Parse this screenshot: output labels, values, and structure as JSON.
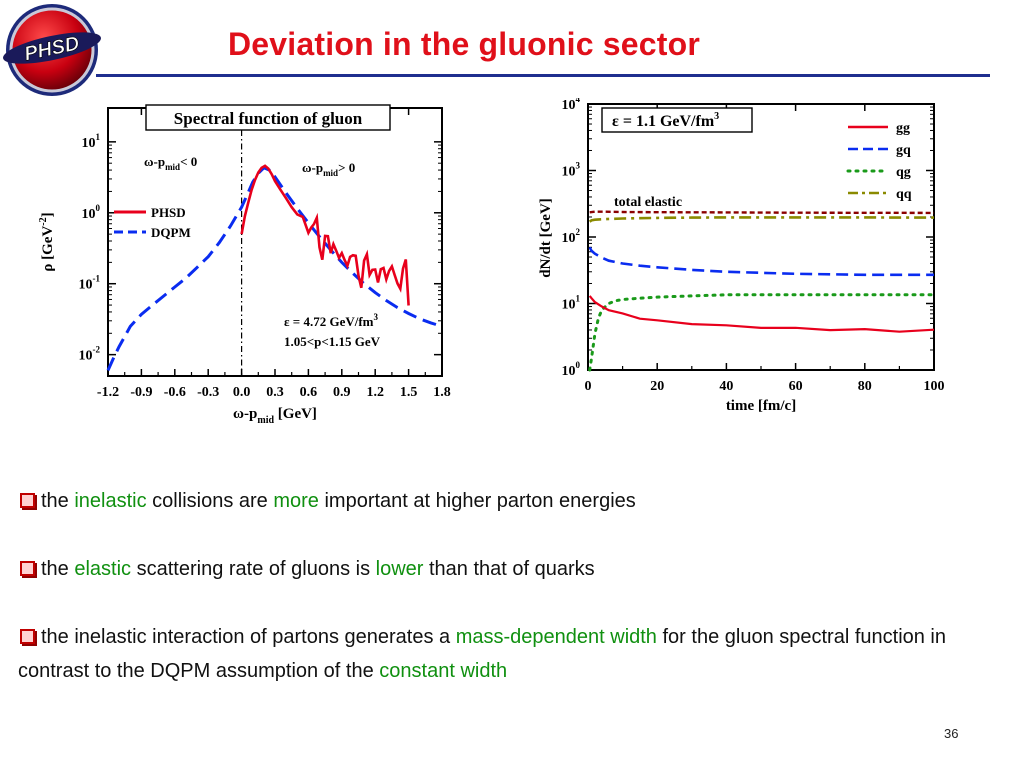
{
  "logo": {
    "text": "PHSD"
  },
  "slide": {
    "title": "Deviation in the gluonic sector",
    "page_number": "36"
  },
  "bullets": [
    {
      "parts": [
        {
          "t": "the ",
          "g": false
        },
        {
          "t": "inelastic",
          "g": true
        },
        {
          "t": " collisions are ",
          "g": false
        },
        {
          "t": "more",
          "g": true
        },
        {
          "t": " important at higher parton energies",
          "g": false
        }
      ]
    },
    {
      "parts": [
        {
          "t": "the ",
          "g": false
        },
        {
          "t": "elastic",
          "g": true
        },
        {
          "t": " scattering rate of gluons is ",
          "g": false
        },
        {
          "t": "lower",
          "g": true
        },
        {
          "t": " than that of quarks",
          "g": false
        }
      ]
    },
    {
      "parts": [
        {
          "t": "the inelastic interaction of partons generates a ",
          "g": false
        },
        {
          "t": "mass-dependent width",
          "g": true
        },
        {
          "t": " for the gluon spectral function in contrast to the DQPM assumption of the ",
          "g": false
        },
        {
          "t": "constant  width",
          "g": true
        }
      ]
    }
  ],
  "colors": {
    "title": "#e0101a",
    "rule": "#1f2e8f",
    "green_text": "#109010",
    "phsd": "#e8001c",
    "dqpm": "#0a2cf0",
    "gq": "#0a2cf0",
    "qg": "#1a9a1a",
    "qq": "#8a8a00",
    "total": "#8b0000"
  },
  "chart_data": [
    {
      "type": "line",
      "title": "Spectral function of gluon",
      "xlabel": "ω-p_mid [GeV]",
      "ylabel": "ρ [GeV^-2]",
      "xlim": [
        -1.2,
        1.8
      ],
      "ylim": [
        0.005,
        30
      ],
      "y_scale": "log",
      "x_ticks": [
        "-1.2",
        "-0.9",
        "-0.6",
        "-0.3",
        "0.0",
        "0.3",
        "0.6",
        "0.9",
        "1.2",
        "1.5",
        "1.8"
      ],
      "y_ticks": [
        {
          "mant": "10",
          "exp": "-2",
          "v": 0.01
        },
        {
          "mant": "10",
          "exp": "-1",
          "v": 0.1
        },
        {
          "mant": "10",
          "exp": "0",
          "v": 1
        },
        {
          "mant": "10",
          "exp": "1",
          "v": 10
        }
      ],
      "legend_placement": "upper-left",
      "region_left_label": "ω-p",
      "region_left_sub": "mid",
      "region_left_tail": "< 0",
      "region_right_label": "ω-p",
      "region_right_sub": "mid",
      "region_right_tail": "> 0",
      "annotation_line1": "ε = 4.72 GeV/fm",
      "annotation_line1_sup": "3",
      "annotation_line2": "1.05<p<1.15 GeV",
      "series": [
        {
          "name": "PHSD",
          "x": [
            0.0,
            0.03,
            0.06,
            0.09,
            0.12,
            0.15,
            0.18,
            0.21,
            0.24,
            0.27,
            0.3,
            0.35,
            0.4,
            0.45,
            0.5,
            0.55,
            0.6,
            0.65,
            0.7,
            0.75,
            0.8,
            0.85,
            0.9,
            0.95,
            1.0,
            1.05,
            1.1,
            1.15,
            1.2,
            1.25,
            1.3,
            1.35,
            1.4,
            1.45,
            1.5
          ],
          "y": [
            0.5,
            0.9,
            1.4,
            2.1,
            2.9,
            3.7,
            4.3,
            4.6,
            4.2,
            3.5,
            2.8,
            2.1,
            1.6,
            1.2,
            0.95,
            0.8,
            0.65,
            0.55,
            0.45,
            0.38,
            0.32,
            0.28,
            0.25,
            0.22,
            0.2,
            0.18,
            0.17,
            0.16,
            0.15,
            0.15,
            0.14,
            0.14,
            0.14,
            0.13,
            0.06
          ]
        },
        {
          "name": "DQPM",
          "x": [
            -1.2,
            -1.15,
            -1.1,
            -1.05,
            -1.0,
            -0.9,
            -0.8,
            -0.7,
            -0.6,
            -0.5,
            -0.4,
            -0.3,
            -0.2,
            -0.1,
            0.0,
            0.05,
            0.1,
            0.15,
            0.2,
            0.25,
            0.3,
            0.4,
            0.5,
            0.6,
            0.7,
            0.8,
            0.9,
            1.0,
            1.1,
            1.2,
            1.3,
            1.4,
            1.5,
            1.6,
            1.7,
            1.8
          ],
          "y": [
            0.006,
            0.009,
            0.013,
            0.018,
            0.025,
            0.037,
            0.05,
            0.067,
            0.09,
            0.12,
            0.17,
            0.24,
            0.38,
            0.65,
            1.2,
            1.8,
            2.7,
            3.6,
            4.3,
            4.0,
            3.2,
            1.9,
            1.15,
            0.72,
            0.46,
            0.3,
            0.2,
            0.14,
            0.1,
            0.075,
            0.058,
            0.046,
            0.038,
            0.032,
            0.028,
            0.025
          ]
        }
      ]
    },
    {
      "type": "line",
      "title": "ε = 1.1 GeV/fm",
      "title_sup": "3",
      "xlabel": "time [fm/c]",
      "ylabel": "dN/dt [GeV]",
      "xlim": [
        0,
        100
      ],
      "ylim": [
        1,
        10000
      ],
      "y_scale": "log",
      "x_ticks": [
        "0",
        "20",
        "40",
        "60",
        "80",
        "100"
      ],
      "y_ticks": [
        {
          "mant": "10",
          "exp": "0",
          "v": 1
        },
        {
          "mant": "10",
          "exp": "1",
          "v": 10
        },
        {
          "mant": "10",
          "exp": "2",
          "v": 100
        },
        {
          "mant": "10",
          "exp": "3",
          "v": 1000
        },
        {
          "mant": "10",
          "exp": "4",
          "v": 10000
        }
      ],
      "legend_placement": "top-right",
      "annotation": "total elastic",
      "series": [
        {
          "name": "gg",
          "x": [
            0.5,
            1,
            2,
            4,
            6,
            10,
            15,
            20,
            30,
            40,
            50,
            60,
            70,
            80,
            90,
            100
          ],
          "y": [
            13,
            12,
            10.5,
            9,
            8,
            7,
            6,
            5.5,
            5,
            4.6,
            4.4,
            4.2,
            4.1,
            4.0,
            3.9,
            3.9
          ]
        },
        {
          "name": "gq",
          "x": [
            0.5,
            1,
            2,
            4,
            6,
            10,
            15,
            20,
            30,
            40,
            50,
            60,
            70,
            80,
            90,
            100
          ],
          "y": [
            70,
            62,
            56,
            49,
            44,
            40,
            37,
            35,
            32,
            30,
            29,
            28,
            27.5,
            27,
            27,
            27
          ]
        },
        {
          "name": "qg",
          "x": [
            0.5,
            1,
            2,
            3,
            4,
            6,
            8,
            10,
            15,
            20,
            30,
            40,
            50,
            60,
            70,
            80,
            90,
            100
          ],
          "y": [
            1,
            1.5,
            3.5,
            6,
            8,
            10,
            11,
            11.5,
            12,
            12.5,
            13,
            13.5,
            13.5,
            13.5,
            13.5,
            13.5,
            13.5,
            13.5
          ]
        },
        {
          "name": "qq",
          "x": [
            0.5,
            1,
            2,
            5,
            10,
            20,
            30,
            40,
            50,
            60,
            70,
            80,
            90,
            100
          ],
          "y": [
            170,
            178,
            182,
            186,
            190,
            194,
            196,
            197,
            197,
            197,
            197,
            197,
            196,
            196
          ]
        },
        {
          "name": "",
          "x": [
            0.5,
            2,
            5,
            10,
            20,
            40,
            60,
            80,
            100
          ],
          "y": [
            235,
            240,
            240,
            238,
            236,
            234,
            232,
            231,
            230
          ]
        }
      ]
    }
  ]
}
